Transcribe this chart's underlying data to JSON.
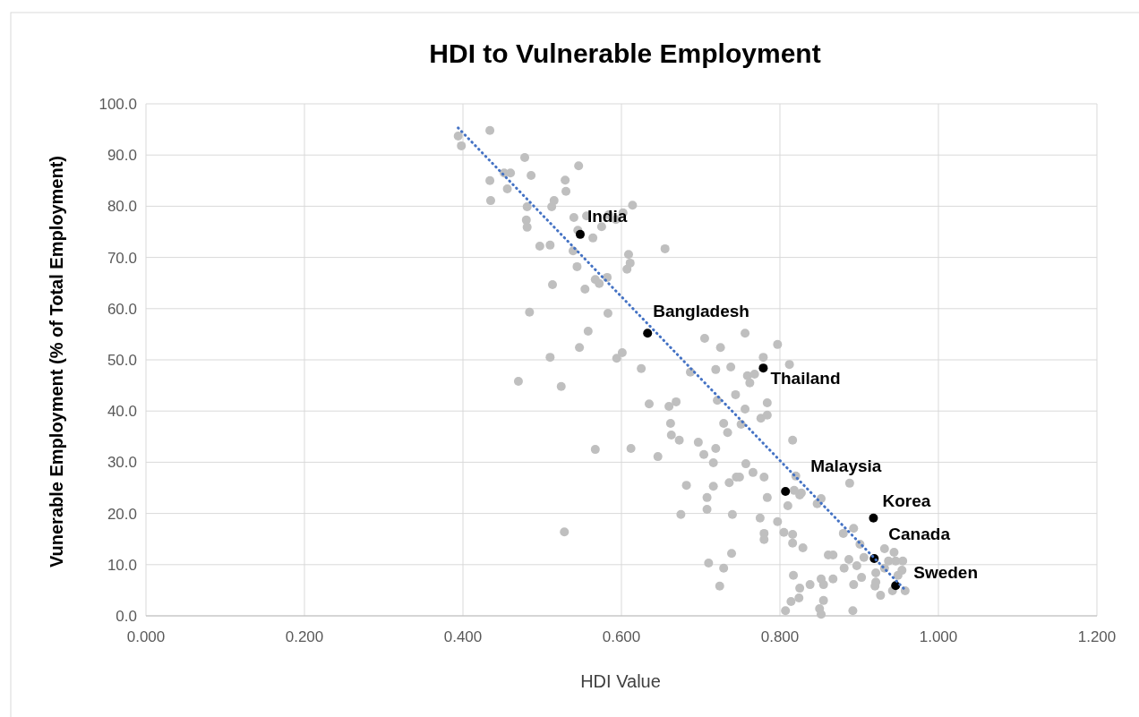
{
  "chart_data": {
    "type": "scatter",
    "title": "HDI to Vulnerable Employment",
    "xlabel": "HDI Value",
    "ylabel": "Vunerable Employment (% of Total Employment)",
    "xlim": [
      0,
      1.2
    ],
    "xticks": [
      {
        "value": 0,
        "label": "0.000"
      },
      {
        "value": 0.2,
        "label": "0.200"
      },
      {
        "value": 0.4,
        "label": "0.400"
      },
      {
        "value": 0.6,
        "label": "0.600"
      },
      {
        "value": 0.8,
        "label": "0.800"
      },
      {
        "value": 1,
        "label": "1.000"
      },
      {
        "value": 1.2,
        "label": "1.200"
      }
    ],
    "ylim": [
      0,
      100
    ],
    "yticks": [
      {
        "value": 0,
        "label": "0.0"
      },
      {
        "value": 10,
        "label": "10.0"
      },
      {
        "value": 20,
        "label": "20.0"
      },
      {
        "value": 30,
        "label": "30.0"
      },
      {
        "value": 40,
        "label": "40.0"
      },
      {
        "value": 50,
        "label": "50.0"
      },
      {
        "value": 60,
        "label": "60.0"
      },
      {
        "value": 70,
        "label": "70.0"
      },
      {
        "value": 80,
        "label": "80.0"
      },
      {
        "value": 90,
        "label": "90.0"
      },
      {
        "value": 100,
        "label": "100.0"
      }
    ],
    "grid": true,
    "marker": "circle",
    "series": [
      {
        "color": "#bfbfbf",
        "x": [
          0.394,
          0.398,
          0.434,
          0.478,
          0.546,
          0.452,
          0.46,
          0.486,
          0.434,
          0.529,
          0.456,
          0.53,
          0.435,
          0.515,
          0.512,
          0.481,
          0.614,
          0.54,
          0.556,
          0.584,
          0.593,
          0.602,
          0.48,
          0.481,
          0.545,
          0.575,
          0.564,
          0.497,
          0.51,
          0.539,
          0.655,
          0.609,
          0.611,
          0.607,
          0.544,
          0.567,
          0.572,
          0.582,
          0.513,
          0.554,
          0.583,
          0.484,
          0.558,
          0.547,
          0.51,
          0.594,
          0.601,
          0.625,
          0.47,
          0.524,
          0.635,
          0.66,
          0.662,
          0.663,
          0.567,
          0.612,
          0.646,
          0.528,
          0.705,
          0.725,
          0.756,
          0.797,
          0.779,
          0.812,
          0.687,
          0.719,
          0.738,
          0.759,
          0.768,
          0.762,
          0.669,
          0.721,
          0.744,
          0.756,
          0.784,
          0.776,
          0.784,
          0.729,
          0.734,
          0.751,
          0.673,
          0.697,
          0.816,
          0.704,
          0.719,
          0.716,
          0.757,
          0.766,
          0.78,
          0.82,
          0.825,
          0.682,
          0.716,
          0.736,
          0.745,
          0.749,
          0.708,
          0.784,
          0.81,
          0.675,
          0.708,
          0.74,
          0.775,
          0.797,
          0.78,
          0.78,
          0.805,
          0.739,
          0.71,
          0.729,
          0.724,
          0.807,
          0.888,
          0.827,
          0.818,
          0.847,
          0.852,
          0.816,
          0.816,
          0.829,
          0.88,
          0.893,
          0.901,
          0.861,
          0.867,
          0.887,
          0.897,
          0.906,
          0.932,
          0.944,
          0.937,
          0.932,
          0.946,
          0.955,
          0.954,
          0.949,
          0.921,
          0.881,
          0.893,
          0.903,
          0.921,
          0.92,
          0.927,
          0.942,
          0.958,
          0.817,
          0.825,
          0.838,
          0.852,
          0.855,
          0.867,
          0.814,
          0.824,
          0.85,
          0.852,
          0.855,
          0.892
        ],
        "values": [
          93.7,
          91.8,
          94.8,
          89.5,
          87.9,
          86.5,
          86.5,
          86.0,
          85.0,
          85.1,
          83.4,
          82.9,
          81.1,
          81.1,
          79.9,
          79.9,
          80.2,
          77.8,
          78.1,
          78.3,
          77.4,
          78.7,
          77.3,
          75.9,
          75.3,
          76.0,
          73.8,
          72.2,
          72.4,
          71.3,
          71.7,
          70.6,
          68.9,
          67.7,
          68.2,
          65.7,
          64.9,
          66.1,
          64.7,
          63.8,
          59.1,
          59.3,
          55.6,
          52.4,
          50.5,
          50.3,
          51.4,
          48.3,
          45.8,
          44.8,
          41.4,
          40.9,
          37.6,
          35.3,
          32.5,
          32.7,
          31.1,
          16.4,
          54.2,
          52.4,
          55.2,
          53.0,
          50.5,
          49.1,
          47.6,
          48.1,
          48.6,
          46.9,
          47.2,
          45.5,
          41.8,
          42.1,
          43.2,
          40.4,
          41.6,
          38.6,
          39.2,
          37.6,
          35.8,
          37.4,
          34.3,
          33.9,
          34.3,
          31.5,
          32.7,
          29.9,
          29.7,
          28.0,
          27.1,
          27.3,
          23.6,
          25.5,
          25.3,
          26.0,
          27.1,
          27.1,
          23.1,
          23.1,
          21.5,
          19.8,
          20.8,
          19.8,
          19.1,
          18.4,
          16.1,
          14.9,
          16.3,
          12.2,
          10.3,
          9.3,
          5.8,
          1.0,
          25.9,
          24.0,
          24.5,
          21.9,
          22.9,
          15.9,
          14.2,
          13.3,
          16.1,
          17.1,
          14.0,
          11.9,
          11.9,
          11.0,
          9.8,
          11.4,
          13.1,
          12.4,
          10.7,
          9.3,
          10.7,
          10.7,
          8.9,
          7.9,
          8.4,
          9.3,
          6.1,
          7.5,
          6.6,
          5.8,
          4.0,
          4.9,
          4.9,
          7.9,
          5.4,
          6.1,
          7.2,
          6.1,
          7.2,
          2.8,
          3.5,
          1.4,
          0.3,
          3.0,
          1.0
        ]
      },
      {
        "color": "#000000",
        "x": [
          0.548,
          0.633,
          0.779,
          0.807,
          0.918,
          0.919,
          0.946
        ],
        "values": [
          74.5,
          55.2,
          48.4,
          24.3,
          19.1,
          11.2,
          5.9
        ]
      },
      {
        "type": "line",
        "color": "#4472c4",
        "line_style": "dotted",
        "marker": "none",
        "x": [
          0.394,
          0.959
        ],
        "values": [
          95.3,
          4.9
        ]
      }
    ],
    "annotations": [
      {
        "text": "India",
        "x": 0.548,
        "y": 74.5
      },
      {
        "text": "Bangladesh",
        "x": 0.633,
        "y": 55.2
      },
      {
        "text": "Thailand",
        "x": 0.779,
        "y": 48.4
      },
      {
        "text": "Malaysia",
        "x": 0.807,
        "y": 24.3
      },
      {
        "text": "Korea",
        "x": 0.918,
        "y": 19.1
      },
      {
        "text": "Canada",
        "x": 0.919,
        "y": 11.2
      },
      {
        "text": "Sweden",
        "x": 0.946,
        "y": 5.9
      }
    ]
  }
}
